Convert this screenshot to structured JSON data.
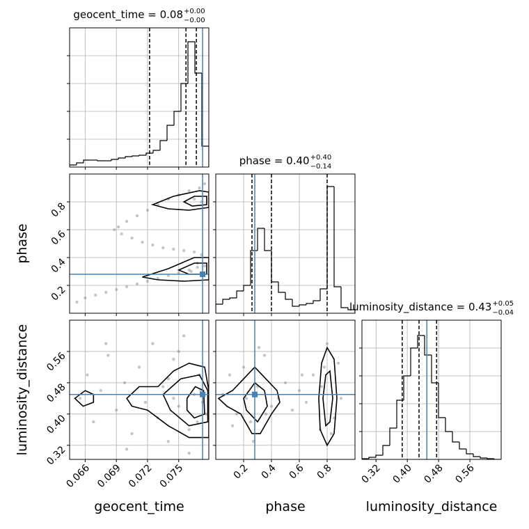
{
  "chart_data": [
    {
      "type": "histogram",
      "color": "#000000",
      "grid": true,
      "xtick_labels": false,
      "ytick_labels": false,
      "title": {
        "text": "geocent_time = 0.08",
        "upper": "+0.00",
        "lower": "−0.00"
      },
      "bins": [
        0.0645,
        0.06517,
        0.06584,
        0.06651,
        0.06718,
        0.06785,
        0.06852,
        0.06919,
        0.06986,
        0.07053,
        0.0712,
        0.07187,
        0.07254,
        0.07321,
        0.07388,
        0.07455,
        0.07522,
        0.07589,
        0.07656,
        0.07723,
        0.0779
      ],
      "counts": [
        3,
        6,
        10,
        10,
        9,
        9,
        11,
        13,
        15,
        16,
        17,
        20,
        24,
        38,
        60,
        80,
        120,
        180,
        135,
        30
      ],
      "xlim": [
        0.0645,
        0.0779
      ],
      "xticks": [
        0.066,
        0.069,
        0.072,
        0.075
      ],
      "ylim": [
        0,
        200
      ],
      "yticks": [
        40,
        80,
        120,
        160
      ],
      "quantiles": [
        0.0722,
        0.0757,
        0.0767
      ],
      "truth": 0.0773,
      "truth_color": "#4682b4"
    },
    {
      "type": "scatter",
      "color": "#808080",
      "contour_color": "#000000",
      "grid": true,
      "xtick_labels": false,
      "ytick_labels": true,
      "ylabel": "phase",
      "x": [
        0.0775,
        0.077,
        0.076,
        0.075,
        0.074,
        0.073,
        0.072,
        0.071,
        0.07,
        0.0692,
        0.0688,
        0.0695,
        0.0705,
        0.0715,
        0.0725,
        0.0735,
        0.0745,
        0.0755,
        0.0765,
        0.0772,
        0.0652,
        0.066,
        0.067,
        0.068,
        0.069,
        0.07,
        0.071,
        0.072,
        0.073,
        0.074,
        0.075,
        0.076,
        0.0768,
        0.0775,
        0.0765,
        0.0772,
        0.0768,
        0.0762
      ],
      "y": [
        0.93,
        0.9,
        0.88,
        0.85,
        0.82,
        0.78,
        0.74,
        0.7,
        0.66,
        0.62,
        0.6,
        0.57,
        0.54,
        0.51,
        0.49,
        0.47,
        0.46,
        0.45,
        0.44,
        0.42,
        0.08,
        0.11,
        0.13,
        0.15,
        0.17,
        0.19,
        0.21,
        0.23,
        0.25,
        0.27,
        0.29,
        0.31,
        0.33,
        0.34,
        0.82,
        0.8,
        0.36,
        0.3
      ],
      "contours": [
        {
          "x": [
            0.0725,
            0.0745,
            0.077,
            0.0779,
            0.0779,
            0.076,
            0.074
          ],
          "y": [
            0.78,
            0.84,
            0.88,
            0.87,
            0.76,
            0.74,
            0.75
          ]
        },
        {
          "x": [
            0.0755,
            0.0765,
            0.0777,
            0.0777,
            0.0763
          ],
          "y": [
            0.8,
            0.84,
            0.84,
            0.78,
            0.77
          ]
        },
        {
          "x": [
            0.0715,
            0.074,
            0.0765,
            0.0779,
            0.0779,
            0.0755,
            0.073
          ],
          "y": [
            0.26,
            0.32,
            0.4,
            0.4,
            0.24,
            0.23,
            0.24
          ]
        },
        {
          "x": [
            0.075,
            0.0765,
            0.0777,
            0.0777,
            0.076
          ],
          "y": [
            0.31,
            0.36,
            0.36,
            0.28,
            0.28
          ]
        }
      ],
      "xlim": [
        0.0645,
        0.0779
      ],
      "xticks": [
        0.066,
        0.069,
        0.072,
        0.075
      ],
      "ylim": [
        0,
        1
      ],
      "yticks": [
        0.2,
        0.4,
        0.6,
        0.8
      ],
      "truth_x": 0.0773,
      "truth_y": 0.28,
      "truth_color": "#4682b4"
    },
    {
      "type": "histogram",
      "color": "#000000",
      "grid": true,
      "xtick_labels": false,
      "ytick_labels": false,
      "title": {
        "text": "phase = 0.40",
        "upper": "+0.40",
        "lower": "−0.14"
      },
      "bins": [
        0,
        0.05,
        0.1,
        0.15,
        0.2,
        0.25,
        0.3,
        0.35,
        0.4,
        0.45,
        0.5,
        0.55,
        0.6,
        0.65,
        0.7,
        0.75,
        0.8,
        0.85,
        0.9,
        0.95,
        1
      ],
      "counts": [
        13,
        20,
        22,
        32,
        40,
        90,
        122,
        90,
        45,
        30,
        20,
        10,
        12,
        14,
        18,
        35,
        182,
        38,
        8,
        5
      ],
      "xlim": [
        0,
        1
      ],
      "xticks": [
        0.2,
        0.4,
        0.6,
        0.8
      ],
      "ylim": [
        0,
        200
      ],
      "yticks": [
        40,
        80,
        120,
        160
      ],
      "quantiles": [
        0.26,
        0.4,
        0.8
      ],
      "truth": 0.28,
      "truth_color": "#4682b4"
    },
    {
      "type": "scatter",
      "color": "#808080",
      "contour_color": "#000000",
      "grid": true,
      "xtick_labels": true,
      "ytick_labels": true,
      "xlabel": "geocent_time",
      "ylabel": "luminosity_distance",
      "x": [
        0.0655,
        0.0662,
        0.0668,
        0.0675,
        0.0682,
        0.069,
        0.0698,
        0.0705,
        0.0712,
        0.0718,
        0.0725,
        0.073,
        0.0735,
        0.074,
        0.0745,
        0.075,
        0.0755,
        0.076,
        0.0765,
        0.077,
        0.0773,
        0.0776,
        0.076,
        0.075,
        0.074,
        0.0768,
        0.0771,
        0.0745,
        0.07,
        0.068
      ],
      "y": [
        0.44,
        0.5,
        0.38,
        0.46,
        0.55,
        0.41,
        0.48,
        0.35,
        0.52,
        0.43,
        0.58,
        0.39,
        0.47,
        0.33,
        0.54,
        0.42,
        0.6,
        0.36,
        0.45,
        0.5,
        0.43,
        0.4,
        0.3,
        0.56,
        0.49,
        0.38,
        0.46,
        0.44,
        0.31,
        0.58
      ],
      "contours": [
        {
          "x": [
            0.07,
            0.0712,
            0.073,
            0.0745,
            0.076,
            0.0775,
            0.0779,
            0.0779,
            0.076,
            0.074,
            0.072,
            0.0705
          ],
          "y": [
            0.44,
            0.47,
            0.47,
            0.51,
            0.53,
            0.52,
            0.46,
            0.34,
            0.34,
            0.37,
            0.41,
            0.42
          ]
        },
        {
          "x": [
            0.065,
            0.066,
            0.0668,
            0.0668,
            0.0658
          ],
          "y": [
            0.44,
            0.46,
            0.45,
            0.43,
            0.42
          ]
        },
        {
          "x": [
            0.0735,
            0.0752,
            0.077,
            0.0778,
            0.0778,
            0.076,
            0.0742
          ],
          "y": [
            0.45,
            0.49,
            0.5,
            0.46,
            0.38,
            0.37,
            0.41
          ]
        },
        {
          "x": [
            0.0758,
            0.0766,
            0.0774,
            0.0775,
            0.0765,
            0.0758
          ],
          "y": [
            0.44,
            0.47,
            0.46,
            0.4,
            0.39,
            0.41
          ]
        }
      ],
      "xlim": [
        0.0645,
        0.0779
      ],
      "xticks": [
        0.066,
        0.069,
        0.072,
        0.075
      ],
      "ylim": [
        0.284,
        0.64
      ],
      "yticks": [
        0.32,
        {
          "value": 0.4,
          "label": "0.40"
        },
        0.48,
        0.56
      ],
      "truth_x": 0.0773,
      "truth_y": 0.45,
      "truth_color": "#4682b4"
    },
    {
      "type": "scatter",
      "color": "#808080",
      "contour_color": "#000000",
      "grid": true,
      "xtick_labels": true,
      "ytick_labels": false,
      "xlabel": "phase",
      "x": [
        0.05,
        0.1,
        0.15,
        0.2,
        0.25,
        0.3,
        0.35,
        0.4,
        0.45,
        0.5,
        0.55,
        0.6,
        0.65,
        0.7,
        0.75,
        0.8,
        0.85,
        0.9,
        0.27,
        0.31,
        0.78,
        0.83,
        0.22,
        0.36,
        0.76,
        0.88,
        0.12,
        0.62
      ],
      "y": [
        0.45,
        0.5,
        0.4,
        0.52,
        0.38,
        0.47,
        0.55,
        0.42,
        0.44,
        0.48,
        0.41,
        0.46,
        0.43,
        0.5,
        0.36,
        0.58,
        0.39,
        0.44,
        0.33,
        0.57,
        0.52,
        0.35,
        0.44,
        0.4,
        0.47,
        0.53,
        0.37,
        0.5
      ],
      "contours": [
        {
          "x": [
            0.02,
            0.12,
            0.2,
            0.28,
            0.36,
            0.44,
            0.46,
            0.4,
            0.32,
            0.26,
            0.18,
            0.08
          ],
          "y": [
            0.44,
            0.46,
            0.49,
            0.52,
            0.49,
            0.46,
            0.43,
            0.4,
            0.35,
            0.35,
            0.4,
            0.42
          ]
        },
        {
          "x": [
            0.2,
            0.28,
            0.35,
            0.37,
            0.3,
            0.22
          ],
          "y": [
            0.44,
            0.48,
            0.46,
            0.42,
            0.38,
            0.41
          ]
        },
        {
          "x": [
            0.74,
            0.76,
            0.8,
            0.85,
            0.87,
            0.85,
            0.8,
            0.75
          ],
          "y": [
            0.44,
            0.53,
            0.57,
            0.54,
            0.44,
            0.35,
            0.32,
            0.36
          ]
        },
        {
          "x": [
            0.77,
            0.79,
            0.82,
            0.84,
            0.82,
            0.79
          ],
          "y": [
            0.44,
            0.5,
            0.51,
            0.44,
            0.38,
            0.37
          ]
        }
      ],
      "xlim": [
        0,
        1
      ],
      "xticks": [
        0.2,
        0.4,
        0.6,
        0.8
      ],
      "ylim": [
        0.284,
        0.64
      ],
      "yticks": [
        0.32,
        0.4,
        0.48,
        0.56
      ],
      "truth_x": 0.28,
      "truth_y": 0.45,
      "truth_color": "#4682b4"
    },
    {
      "type": "histogram",
      "color": "#000000",
      "grid": true,
      "xtick_labels": true,
      "ytick_labels": false,
      "xlabel": "luminosity_distance",
      "title": {
        "text": "luminosity_distance = 0.43",
        "upper": "+0.05",
        "lower": "−0.04"
      },
      "bins": [
        0.284,
        0.3018,
        0.3196,
        0.3374,
        0.3552,
        0.373,
        0.3908,
        0.4086,
        0.4264,
        0.4442,
        0.462,
        0.4798,
        0.4976,
        0.5154,
        0.5332,
        0.551,
        0.5688,
        0.5866,
        0.6044,
        0.6222,
        0.64
      ],
      "counts": [
        1,
        3,
        6,
        20,
        45,
        85,
        120,
        160,
        178,
        150,
        110,
        60,
        40,
        25,
        15,
        8,
        4,
        2,
        1,
        0
      ],
      "xlim": [
        0.284,
        0.64
      ],
      "xticks": [
        0.32,
        {
          "value": 0.4,
          "label": "0.40"
        },
        0.48,
        0.56
      ],
      "ylim": [
        0,
        200
      ],
      "yticks": [
        40,
        80,
        120,
        160
      ],
      "quantiles": [
        0.387,
        0.43,
        0.475
      ],
      "truth": 0.45,
      "truth_color": "#4682b4"
    }
  ]
}
